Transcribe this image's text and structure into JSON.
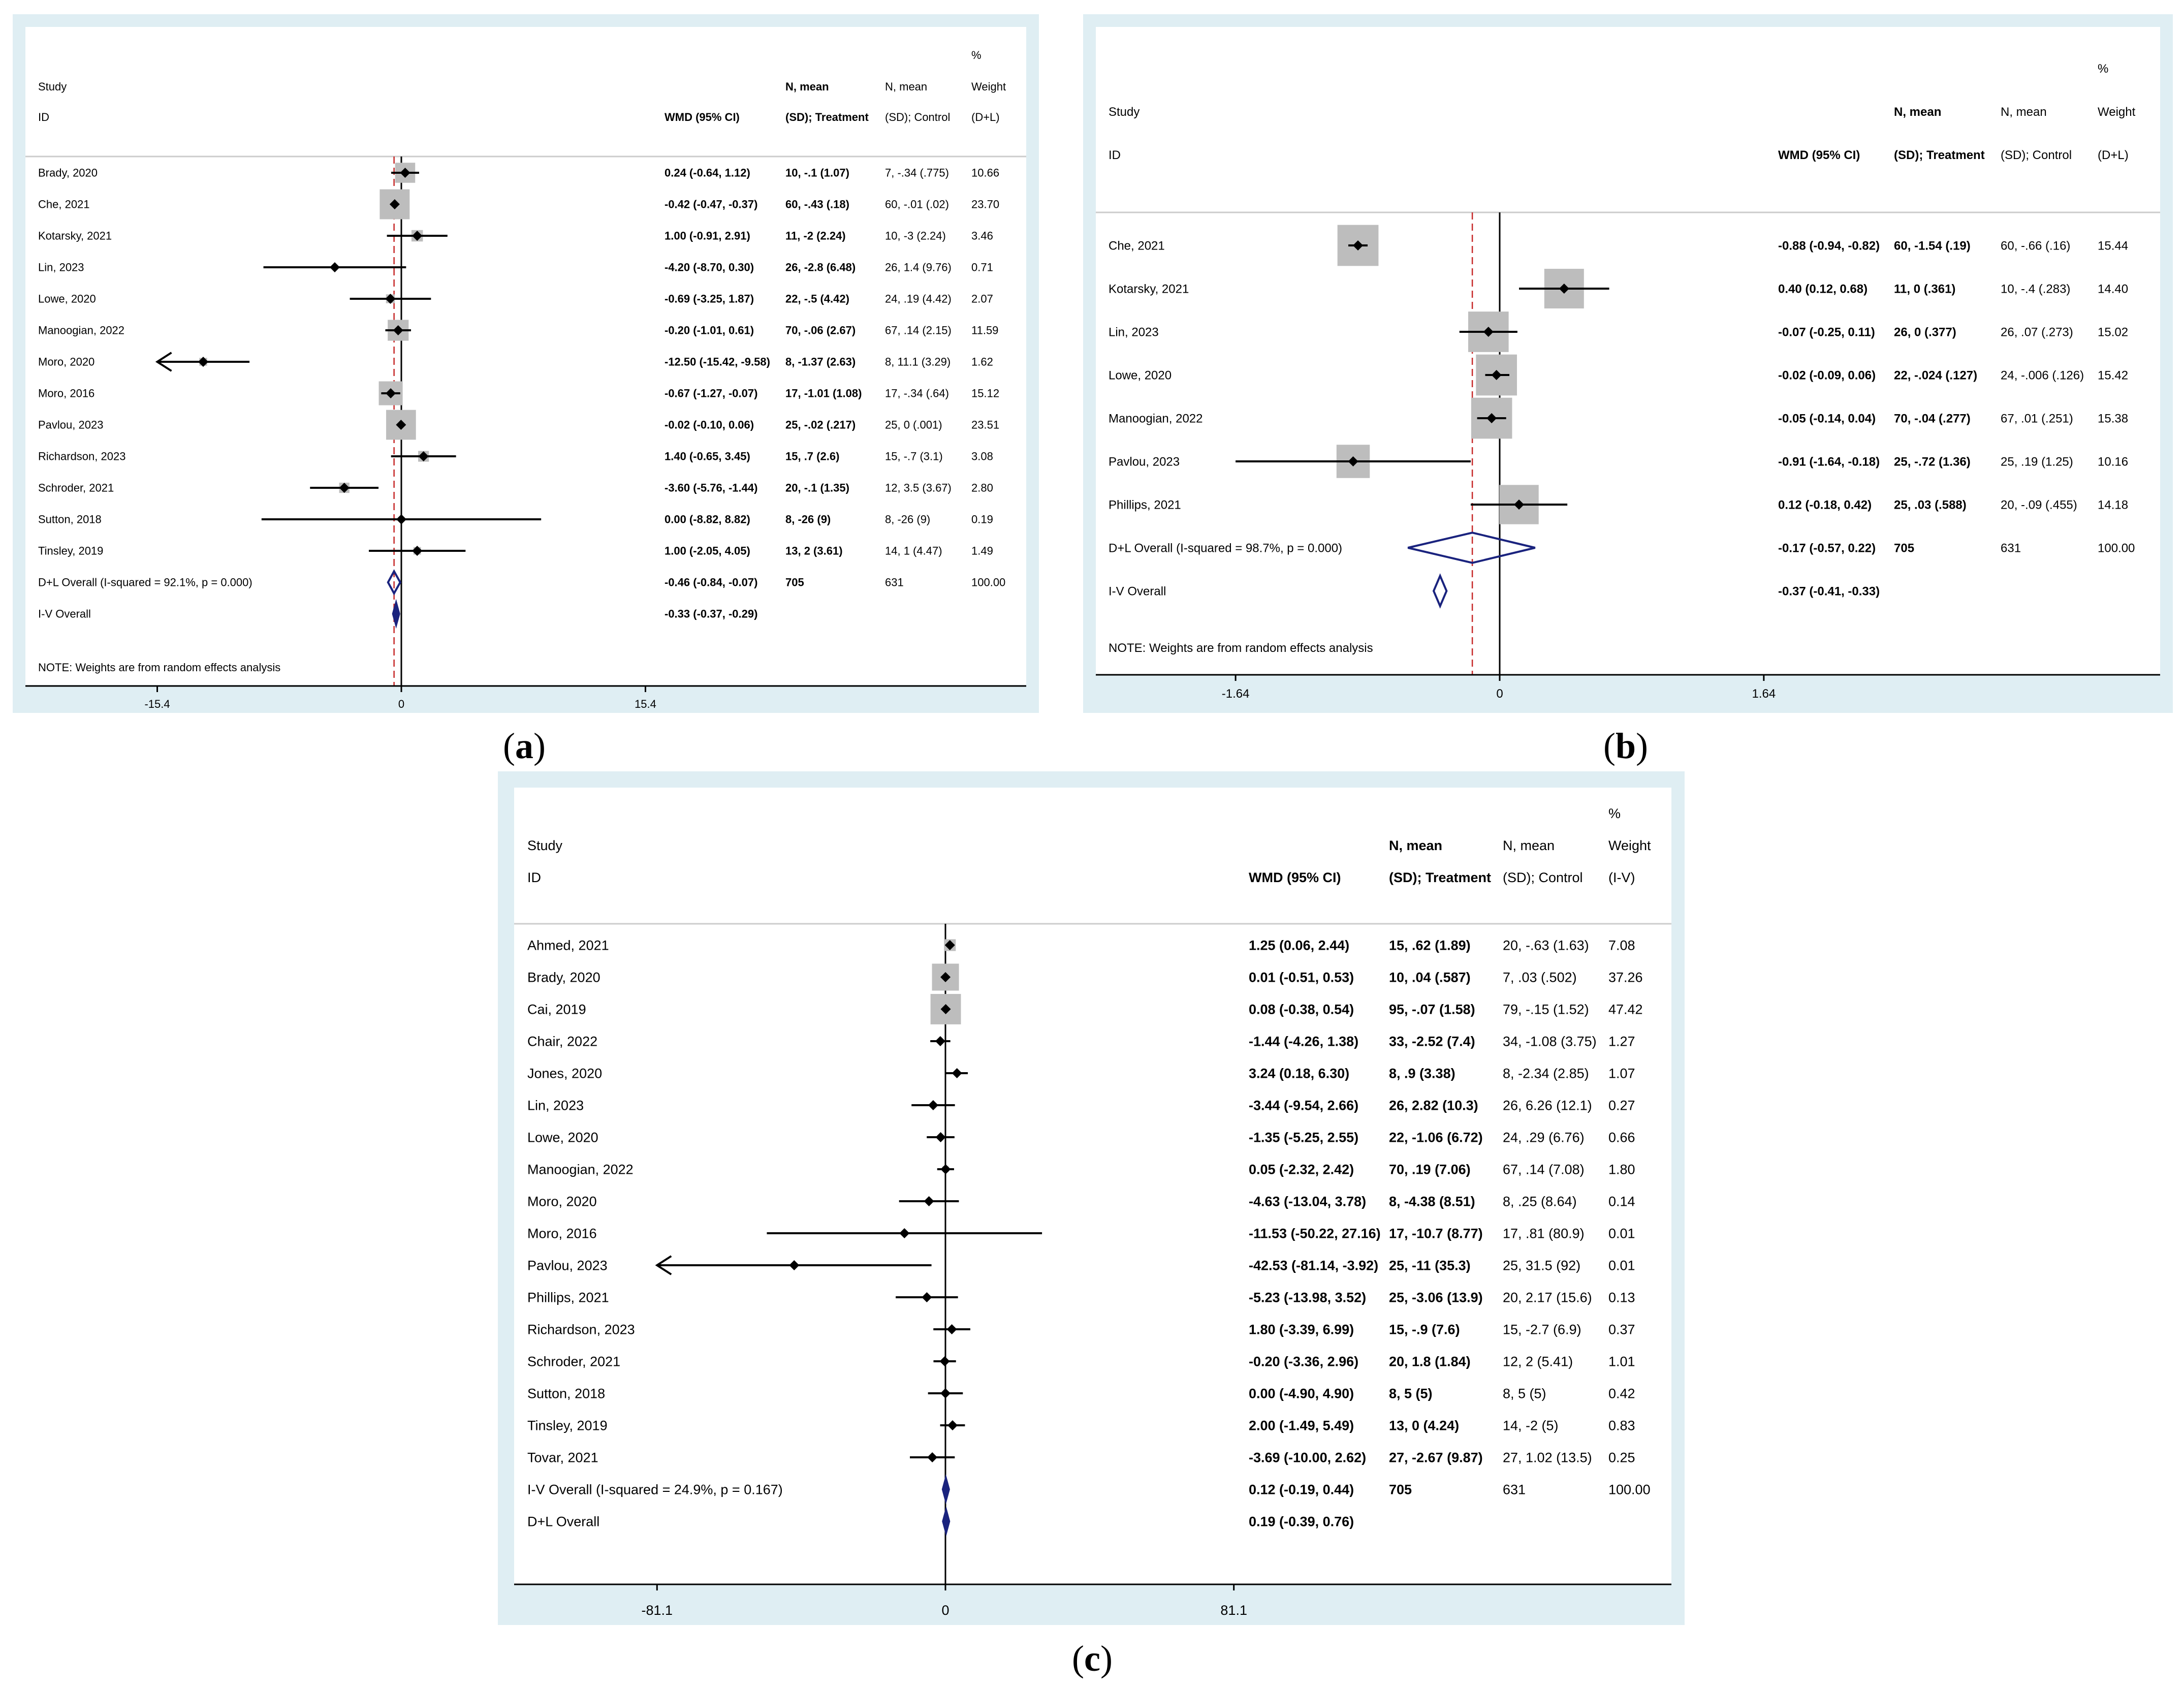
{
  "colors": {
    "frame": "#dfeef3",
    "plot_bg": "#ffffff",
    "box": "#bdbdbd",
    "line": "#000000",
    "diamond": "#1a237e",
    "ref": "#c62828",
    "axis": "#cccccc"
  },
  "chart_data": [
    {
      "type": "forest",
      "panel_label": "a",
      "headers": {
        "study": "Study",
        "id": "ID",
        "wmd": "WMD (95% CI)",
        "treat1": "N, mean",
        "treat2": "(SD); Treatment",
        "ctrl1": "N, mean",
        "ctrl2": "(SD); Control",
        "w0": "%",
        "w1": "Weight",
        "w2": "(D+L)"
      },
      "xlim": [
        -15.4,
        15.4
      ],
      "ticks": [
        "-15.4",
        "0",
        "15.4"
      ],
      "ref_line": -0.46,
      "studies": [
        {
          "label": "Brady, 2020",
          "est": 0.24,
          "lo": -0.64,
          "hi": 1.12,
          "ci_text": "0.24 (-0.64, 1.12)",
          "treatment": "10, -.1 (1.07)",
          "control": "7, -.34 (.775)",
          "weight": "10.66",
          "w": 10.66
        },
        {
          "label": "Che, 2021",
          "est": -0.42,
          "lo": -0.47,
          "hi": -0.37,
          "ci_text": "-0.42 (-0.47, -0.37)",
          "treatment": "60, -.43 (.18)",
          "control": "60, -.01 (.02)",
          "weight": "23.70",
          "w": 23.7
        },
        {
          "label": "Kotarsky, 2021",
          "est": 1.0,
          "lo": -0.91,
          "hi": 2.91,
          "ci_text": "1.00 (-0.91, 2.91)",
          "treatment": "11, -2 (2.24)",
          "control": "10, -3 (2.24)",
          "weight": "3.46",
          "w": 3.46
        },
        {
          "label": "Lin, 2023",
          "est": -4.2,
          "lo": -8.7,
          "hi": 0.3,
          "ci_text": "-4.20 (-8.70, 0.30)",
          "treatment": "26, -2.8 (6.48)",
          "control": "26, 1.4 (9.76)",
          "weight": "0.71",
          "w": 0.71
        },
        {
          "label": "Lowe, 2020",
          "est": -0.69,
          "lo": -3.25,
          "hi": 1.87,
          "ci_text": "-0.69 (-3.25, 1.87)",
          "treatment": "22, -.5 (4.42)",
          "control": "24, .19 (4.42)",
          "weight": "2.07",
          "w": 2.07
        },
        {
          "label": "Manoogian, 2022",
          "est": -0.2,
          "lo": -1.01,
          "hi": 0.61,
          "ci_text": "-0.20 (-1.01, 0.61)",
          "treatment": "70, -.06 (2.67)",
          "control": "67, .14 (2.15)",
          "weight": "11.59",
          "w": 11.59
        },
        {
          "label": "Moro, 2020",
          "est": -12.5,
          "lo": -15.42,
          "hi": -9.58,
          "ci_text": "-12.50 (-15.42, -9.58)",
          "treatment": "8, -1.37 (2.63)",
          "control": "8, 11.1 (3.29)",
          "weight": "1.62",
          "w": 1.62
        },
        {
          "label": "Moro, 2016",
          "est": -0.67,
          "lo": -1.27,
          "hi": -0.07,
          "ci_text": "-0.67 (-1.27, -0.07)",
          "treatment": "17, -1.01 (1.08)",
          "control": "17, -.34 (.64)",
          "weight": "15.12",
          "w": 15.12
        },
        {
          "label": "Pavlou, 2023",
          "est": -0.02,
          "lo": -0.1,
          "hi": 0.06,
          "ci_text": "-0.02 (-0.10, 0.06)",
          "treatment": "25, -.02 (.217)",
          "control": "25, 0 (.001)",
          "weight": "23.51",
          "w": 23.51
        },
        {
          "label": "Richardson, 2023",
          "est": 1.4,
          "lo": -0.65,
          "hi": 3.45,
          "ci_text": "1.40 (-0.65, 3.45)",
          "treatment": "15, .7 (2.6)",
          "control": "15, -.7 (3.1)",
          "weight": "3.08",
          "w": 3.08
        },
        {
          "label": "Schroder, 2021",
          "est": -3.6,
          "lo": -5.76,
          "hi": -1.44,
          "ci_text": "-3.60 (-5.76, -1.44)",
          "treatment": "20, -.1 (1.35)",
          "control": "12, 3.5 (3.67)",
          "weight": "2.80",
          "w": 2.8
        },
        {
          "label": "Sutton, 2018",
          "est": 0.0,
          "lo": -8.82,
          "hi": 8.82,
          "ci_text": "0.00 (-8.82, 8.82)",
          "treatment": "8, -26 (9)",
          "control": "8, -26 (9)",
          "weight": "0.19",
          "w": 0.19
        },
        {
          "label": "Tinsley, 2019",
          "est": 1.0,
          "lo": -2.05,
          "hi": 4.05,
          "ci_text": "1.00 (-2.05, 4.05)",
          "treatment": "13, 2 (3.61)",
          "control": "14, 1 (4.47)",
          "weight": "1.49",
          "w": 1.49
        }
      ],
      "overall": [
        {
          "label": "D+L Overall  (I-squared = 92.1%, p = 0.000)",
          "est": -0.46,
          "lo": -0.84,
          "hi": -0.07,
          "ci_text": "-0.46 (-0.84, -0.07)",
          "treatment": "705",
          "control": "631",
          "weight": "100.00"
        },
        {
          "label": "I-V Overall",
          "est": -0.33,
          "lo": -0.37,
          "hi": -0.29,
          "ci_text": "-0.33 (-0.37, -0.29)",
          "treatment": "",
          "control": "",
          "weight": ""
        }
      ],
      "note": "NOTE: Weights are from random effects analysis"
    },
    {
      "type": "forest",
      "panel_label": "b",
      "headers": {
        "study": "Study",
        "id": "ID",
        "wmd": "WMD (95% CI)",
        "treat1": "N, mean",
        "treat2": "(SD); Treatment",
        "ctrl1": "N, mean",
        "ctrl2": "(SD); Control",
        "w0": "%",
        "w1": "Weight",
        "w2": "(D+L)"
      },
      "xlim": [
        -1.64,
        1.64
      ],
      "ticks": [
        "-1.64",
        "0",
        "1.64"
      ],
      "ref_line": -0.17,
      "studies": [
        {
          "label": "Che, 2021",
          "est": -0.88,
          "lo": -0.94,
          "hi": -0.82,
          "ci_text": "-0.88 (-0.94, -0.82)",
          "treatment": "60, -1.54 (.19)",
          "control": "60, -.66 (.16)",
          "weight": "15.44",
          "w": 15.44
        },
        {
          "label": "Kotarsky, 2021",
          "est": 0.4,
          "lo": 0.12,
          "hi": 0.68,
          "ci_text": "0.40 (0.12, 0.68)",
          "treatment": "11, 0 (.361)",
          "control": "10, -.4 (.283)",
          "weight": "14.40",
          "w": 14.4
        },
        {
          "label": "Lin, 2023",
          "est": -0.07,
          "lo": -0.25,
          "hi": 0.11,
          "ci_text": "-0.07 (-0.25, 0.11)",
          "treatment": "26, 0 (.377)",
          "control": "26, .07 (.273)",
          "weight": "15.02",
          "w": 15.02
        },
        {
          "label": "Lowe, 2020",
          "est": -0.02,
          "lo": -0.09,
          "hi": 0.06,
          "ci_text": "-0.02 (-0.09, 0.06)",
          "treatment": "22, -.024 (.127)",
          "control": "24, -.006 (.126)",
          "weight": "15.42",
          "w": 15.42
        },
        {
          "label": "Manoogian, 2022",
          "est": -0.05,
          "lo": -0.14,
          "hi": 0.04,
          "ci_text": "-0.05 (-0.14, 0.04)",
          "treatment": "70, -.04 (.277)",
          "control": "67, .01 (.251)",
          "weight": "15.38",
          "w": 15.38
        },
        {
          "label": "Pavlou, 2023",
          "est": -0.91,
          "lo": -1.64,
          "hi": -0.18,
          "ci_text": "-0.91 (-1.64, -0.18)",
          "treatment": "25, -.72 (1.36)",
          "control": "25, .19 (1.25)",
          "weight": "10.16",
          "w": 10.16
        },
        {
          "label": "Phillips, 2021",
          "est": 0.12,
          "lo": -0.18,
          "hi": 0.42,
          "ci_text": "0.12 (-0.18, 0.42)",
          "treatment": "25, .03 (.588)",
          "control": "20, -.09 (.455)",
          "weight": "14.18",
          "w": 14.18
        }
      ],
      "overall": [
        {
          "label": "D+L Overall  (I-squared = 98.7%, p = 0.000)",
          "est": -0.17,
          "lo": -0.57,
          "hi": 0.22,
          "ci_text": "-0.17 (-0.57, 0.22)",
          "treatment": "705",
          "control": "631",
          "weight": "100.00"
        },
        {
          "label": "I-V Overall",
          "est": -0.37,
          "lo": -0.41,
          "hi": -0.33,
          "ci_text": "-0.37 (-0.41, -0.33)",
          "treatment": "",
          "control": "",
          "weight": ""
        }
      ],
      "note": "NOTE: Weights are from random effects analysis"
    },
    {
      "type": "forest",
      "panel_label": "c",
      "headers": {
        "study": "Study",
        "id": "ID",
        "wmd": "WMD (95% CI)",
        "treat1": "N, mean",
        "treat2": "(SD); Treatment",
        "ctrl1": "N, mean",
        "ctrl2": "(SD); Control",
        "w0": "%",
        "w1": "Weight",
        "w2": "(I-V)"
      },
      "xlim": [
        -81.1,
        81.1
      ],
      "ticks": [
        "-81.1",
        "0",
        "81.1"
      ],
      "ref_line": null,
      "studies": [
        {
          "label": "Ahmed, 2021",
          "est": 1.25,
          "lo": 0.06,
          "hi": 2.44,
          "ci_text": "1.25 (0.06, 2.44)",
          "treatment": "15, .62 (1.89)",
          "control": "20, -.63 (1.63)",
          "weight": "7.08",
          "w": 7.08
        },
        {
          "label": "Brady, 2020",
          "est": 0.01,
          "lo": -0.51,
          "hi": 0.53,
          "ci_text": "0.01 (-0.51, 0.53)",
          "treatment": "10, .04 (.587)",
          "control": "7, .03 (.502)",
          "weight": "37.26",
          "w": 37.26
        },
        {
          "label": "Cai, 2019",
          "est": 0.08,
          "lo": -0.38,
          "hi": 0.54,
          "ci_text": "0.08 (-0.38, 0.54)",
          "treatment": "95, -.07 (1.58)",
          "control": "79, -.15 (1.52)",
          "weight": "47.42",
          "w": 47.42
        },
        {
          "label": "Chair, 2022",
          "est": -1.44,
          "lo": -4.26,
          "hi": 1.38,
          "ci_text": "-1.44 (-4.26, 1.38)",
          "treatment": "33, -2.52 (7.4)",
          "control": "34, -1.08 (3.75)",
          "weight": "1.27",
          "w": 1.27
        },
        {
          "label": "Jones, 2020",
          "est": 3.24,
          "lo": 0.18,
          "hi": 6.3,
          "ci_text": "3.24 (0.18, 6.30)",
          "treatment": "8, .9 (3.38)",
          "control": "8, -2.34 (2.85)",
          "weight": "1.07",
          "w": 1.07
        },
        {
          "label": "Lin, 2023",
          "est": -3.44,
          "lo": -9.54,
          "hi": 2.66,
          "ci_text": "-3.44 (-9.54, 2.66)",
          "treatment": "26, 2.82 (10.3)",
          "control": "26, 6.26 (12.1)",
          "weight": "0.27",
          "w": 0.27
        },
        {
          "label": "Lowe, 2020",
          "est": -1.35,
          "lo": -5.25,
          "hi": 2.55,
          "ci_text": "-1.35 (-5.25, 2.55)",
          "treatment": "22, -1.06 (6.72)",
          "control": "24, .29 (6.76)",
          "weight": "0.66",
          "w": 0.66
        },
        {
          "label": "Manoogian, 2022",
          "est": 0.05,
          "lo": -2.32,
          "hi": 2.42,
          "ci_text": "0.05 (-2.32, 2.42)",
          "treatment": "70, .19 (7.06)",
          "control": "67, .14 (7.08)",
          "weight": "1.80",
          "w": 1.8
        },
        {
          "label": "Moro, 2020",
          "est": -4.63,
          "lo": -13.04,
          "hi": 3.78,
          "ci_text": "-4.63 (-13.04, 3.78)",
          "treatment": "8, -4.38 (8.51)",
          "control": "8, .25 (8.64)",
          "weight": "0.14",
          "w": 0.14
        },
        {
          "label": "Moro, 2016",
          "est": -11.53,
          "lo": -50.22,
          "hi": 27.16,
          "ci_text": "-11.53 (-50.22, 27.16)",
          "treatment": "17, -10.7 (8.77)",
          "control": "17, .81 (80.9)",
          "weight": "0.01",
          "w": 0.01
        },
        {
          "label": "Pavlou, 2023",
          "est": -42.53,
          "lo": -81.14,
          "hi": -3.92,
          "ci_text": "-42.53 (-81.14, -3.92)",
          "treatment": "25, -11 (35.3)",
          "control": "25, 31.5 (92)",
          "weight": "0.01",
          "w": 0.01
        },
        {
          "label": "Phillips, 2021",
          "est": -5.23,
          "lo": -13.98,
          "hi": 3.52,
          "ci_text": "-5.23 (-13.98, 3.52)",
          "treatment": "25, -3.06 (13.9)",
          "control": "20, 2.17 (15.6)",
          "weight": "0.13",
          "w": 0.13
        },
        {
          "label": "Richardson, 2023",
          "est": 1.8,
          "lo": -3.39,
          "hi": 6.99,
          "ci_text": "1.80 (-3.39, 6.99)",
          "treatment": "15, -.9 (7.6)",
          "control": "15, -2.7 (6.9)",
          "weight": "0.37",
          "w": 0.37
        },
        {
          "label": "Schroder, 2021",
          "est": -0.2,
          "lo": -3.36,
          "hi": 2.96,
          "ci_text": "-0.20 (-3.36, 2.96)",
          "treatment": "20, 1.8 (1.84)",
          "control": "12, 2 (5.41)",
          "weight": "1.01",
          "w": 1.01
        },
        {
          "label": "Sutton, 2018",
          "est": 0.0,
          "lo": -4.9,
          "hi": 4.9,
          "ci_text": "0.00 (-4.90, 4.90)",
          "treatment": "8, 5 (5)",
          "control": "8, 5 (5)",
          "weight": "0.42",
          "w": 0.42
        },
        {
          "label": "Tinsley, 2019",
          "est": 2.0,
          "lo": -1.49,
          "hi": 5.49,
          "ci_text": "2.00 (-1.49, 5.49)",
          "treatment": "13, 0 (4.24)",
          "control": "14, -2 (5)",
          "weight": "0.83",
          "w": 0.83
        },
        {
          "label": "Tovar, 2021",
          "est": -3.69,
          "lo": -10.0,
          "hi": 2.62,
          "ci_text": "-3.69 (-10.00, 2.62)",
          "treatment": "27, -2.67 (9.87)",
          "control": "27, 1.02 (13.5)",
          "weight": "0.25",
          "w": 0.25
        }
      ],
      "overall": [
        {
          "label": "I-V Overall  (I-squared = 24.9%, p = 0.167)",
          "est": 0.12,
          "lo": -0.19,
          "hi": 0.44,
          "ci_text": "0.12 (-0.19, 0.44)",
          "treatment": "705",
          "control": "631",
          "weight": "100.00"
        },
        {
          "label": "D+L Overall",
          "est": 0.19,
          "lo": -0.39,
          "hi": 0.76,
          "ci_text": "0.19 (-0.39, 0.76)",
          "treatment": "",
          "control": "",
          "weight": ""
        }
      ],
      "note": ""
    }
  ]
}
